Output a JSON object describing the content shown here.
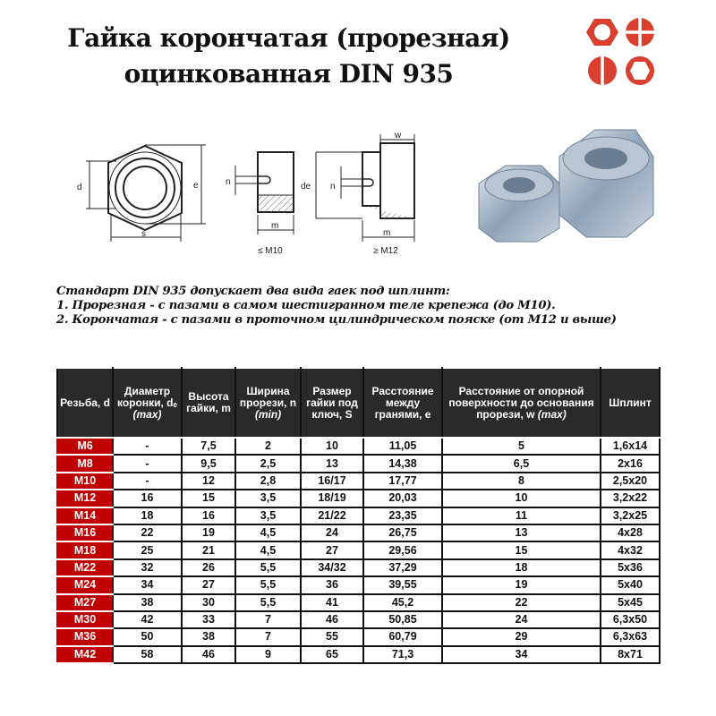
{
  "title": {
    "line1": "Гайка корончатая (прорезная)",
    "line2": "оцинкованная DIN 935"
  },
  "logo_color": "#d9402f",
  "drawing": {
    "labels": {
      "d": "d",
      "s": "s",
      "e": "e",
      "n": "n",
      "m": "m",
      "de": "de",
      "w": "w"
    },
    "caption_left": "≤ M10",
    "caption_right": "≥ M12"
  },
  "notes": [
    "Стандарт DIN 935 допускает два вида гаек под шплинт:",
    "1. Прорезная - с пазами в самом шестигранном теле крепежа (до М10).",
    "2. Корончатая - с пазами в проточном цилиндрическом пояске (от М12 и выше)"
  ],
  "table": {
    "headers": [
      {
        "text": "Резьба, d",
        "em": ""
      },
      {
        "text": "Диаметр коронки, dₑ",
        "em": "(max)"
      },
      {
        "text": "Высота гайки, m",
        "em": ""
      },
      {
        "text": "Ширина прорези, n",
        "em": "(min)"
      },
      {
        "text": "Размер гайки под ключ, S",
        "em": ""
      },
      {
        "text": "Расстояние между гранями, e",
        "em": ""
      },
      {
        "text": "Расстояние от опорной поверхности до основания прорези, w",
        "em": "(max)"
      },
      {
        "text": "Шплинт",
        "em": ""
      }
    ],
    "rows": [
      [
        "M6",
        "-",
        "7,5",
        "2",
        "10",
        "11,05",
        "5",
        "1,6x14"
      ],
      [
        "M8",
        "-",
        "9,5",
        "2,5",
        "13",
        "14,38",
        "6,5",
        "2x16"
      ],
      [
        "M10",
        "-",
        "12",
        "2,8",
        "16/17",
        "17,77",
        "8",
        "2,5x20"
      ],
      [
        "M12",
        "16",
        "15",
        "3,5",
        "18/19",
        "20,03",
        "10",
        "3,2x22"
      ],
      [
        "M14",
        "18",
        "16",
        "3,5",
        "21/22",
        "23,35",
        "11",
        "3,2x25"
      ],
      [
        "M16",
        "22",
        "19",
        "4,5",
        "24",
        "26,75",
        "13",
        "4x28"
      ],
      [
        "M18",
        "25",
        "21",
        "4,5",
        "27",
        "29,56",
        "15",
        "4x32"
      ],
      [
        "M22",
        "32",
        "26",
        "5,5",
        "34/32",
        "37,29",
        "18",
        "5x36"
      ],
      [
        "M24",
        "34",
        "27",
        "5,5",
        "36",
        "39,55",
        "19",
        "5x40"
      ],
      [
        "M27",
        "38",
        "30",
        "5,5",
        "41",
        "45,2",
        "22",
        "5x45"
      ],
      [
        "M30",
        "42",
        "33",
        "7",
        "46",
        "50,85",
        "24",
        "6,3x50"
      ],
      [
        "M36",
        "50",
        "38",
        "7",
        "55",
        "60,79",
        "29",
        "6,3x63"
      ],
      [
        "M42",
        "58",
        "46",
        "9",
        "65",
        "71,3",
        "34",
        "8x71"
      ]
    ]
  }
}
